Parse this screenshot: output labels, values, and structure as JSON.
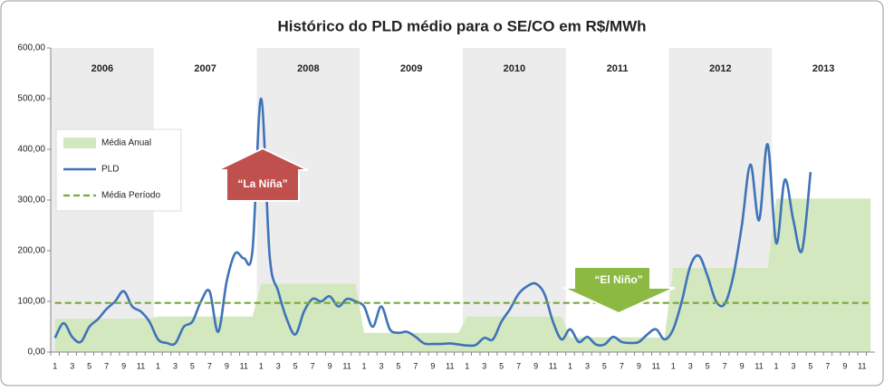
{
  "chart_data": {
    "type": "line",
    "title": "Histórico do PLD médio para o SE/CO em R$/MWh",
    "periods": [
      "2006",
      "2007",
      "2008",
      "2009",
      "2010",
      "2011",
      "2012",
      "2013"
    ],
    "categories": [
      "1",
      null,
      "3",
      null,
      "5",
      null,
      "7",
      null,
      "9",
      null,
      "11",
      null,
      "1",
      null,
      "3",
      null,
      "5",
      null,
      "7",
      null,
      "9",
      null,
      "11",
      null,
      "1",
      null,
      "3",
      null,
      "5",
      null,
      "7",
      null,
      "9",
      null,
      "11",
      null,
      "1",
      null,
      "3",
      null,
      "5",
      null,
      "7",
      null,
      "9",
      null,
      "11",
      null,
      "1",
      null,
      "3",
      null,
      "5",
      null,
      "7",
      null,
      "9",
      null,
      "11",
      null,
      "1",
      null,
      "3",
      null,
      "5",
      null,
      "7",
      null,
      "9",
      null,
      "11",
      null,
      "1",
      null,
      "3",
      null,
      "5",
      null,
      "7",
      null,
      "9",
      null,
      "11",
      null,
      "1",
      null,
      "3",
      null,
      "5",
      null,
      "7",
      null,
      "9",
      null,
      "11",
      null
    ],
    "series": [
      {
        "name": "Média Anual",
        "kind": "area",
        "color": "#d3e8bf",
        "values": [
          66,
          66,
          66,
          66,
          66,
          66,
          66,
          66,
          66,
          66,
          66,
          66,
          70,
          70,
          70,
          70,
          70,
          70,
          70,
          70,
          70,
          70,
          70,
          70,
          135,
          135,
          135,
          135,
          135,
          135,
          135,
          135,
          135,
          135,
          135,
          135,
          38,
          38,
          38,
          38,
          38,
          38,
          38,
          38,
          38,
          38,
          38,
          38,
          70,
          70,
          70,
          70,
          70,
          70,
          70,
          70,
          70,
          70,
          70,
          70,
          29,
          29,
          29,
          29,
          29,
          29,
          29,
          29,
          29,
          29,
          29,
          29,
          166,
          166,
          166,
          166,
          166,
          166,
          166,
          166,
          166,
          166,
          166,
          166,
          303,
          303,
          303,
          303,
          303,
          303,
          303,
          303,
          303,
          303,
          303,
          303
        ]
      },
      {
        "name": "PLD",
        "kind": "line",
        "color": "#3e73b8",
        "values": [
          28,
          57,
          30,
          20,
          50,
          65,
          85,
          100,
          120,
          90,
          80,
          60,
          25,
          18,
          17,
          50,
          60,
          100,
          120,
          40,
          140,
          195,
          185,
          200,
          500,
          190,
          120,
          65,
          35,
          80,
          105,
          100,
          110,
          90,
          105,
          100,
          90,
          50,
          90,
          45,
          38,
          40,
          30,
          17,
          16,
          16,
          17,
          15,
          13,
          14,
          28,
          25,
          60,
          85,
          115,
          130,
          135,
          115,
          60,
          25,
          45,
          20,
          30,
          15,
          15,
          30,
          20,
          18,
          20,
          35,
          45,
          25,
          45,
          100,
          170,
          190,
          150,
          100,
          95,
          150,
          250,
          370,
          260,
          410,
          215,
          340,
          260,
          200,
          355,
          null,
          null,
          null,
          null,
          null,
          null,
          null
        ]
      },
      {
        "name": "Média Período",
        "kind": "dashed",
        "color": "#77a83a",
        "values": [
          97,
          97,
          97,
          97,
          97,
          97,
          97,
          97,
          97,
          97,
          97,
          97,
          97,
          97,
          97,
          97,
          97,
          97,
          97,
          97,
          97,
          97,
          97,
          97,
          97,
          97,
          97,
          97,
          97,
          97,
          97,
          97,
          97,
          97,
          97,
          97,
          97,
          97,
          97,
          97,
          97,
          97,
          97,
          97,
          97,
          97,
          97,
          97,
          97,
          97,
          97,
          97,
          97,
          97,
          97,
          97,
          97,
          97,
          97,
          97,
          97,
          97,
          97,
          97,
          97,
          97,
          97,
          97,
          97,
          97,
          97,
          97,
          97,
          97,
          97,
          97,
          97,
          97,
          97,
          97,
          97,
          97,
          97,
          97,
          97,
          97,
          97,
          97,
          97,
          97,
          97,
          97,
          97,
          97,
          97,
          97
        ]
      }
    ],
    "ylim": [
      0,
      600
    ],
    "yticks": [
      {
        "value": 0,
        "label": "0,00"
      },
      {
        "value": 100,
        "label": "100,00"
      },
      {
        "value": 200,
        "label": "200,00"
      },
      {
        "value": 300,
        "label": "300,00"
      },
      {
        "value": 400,
        "label": "400,00"
      },
      {
        "value": 500,
        "label": "500,00"
      },
      {
        "value": 600,
        "label": "600,00"
      }
    ],
    "annotations": [
      "“La Niña”",
      "“El Niño”"
    ]
  }
}
